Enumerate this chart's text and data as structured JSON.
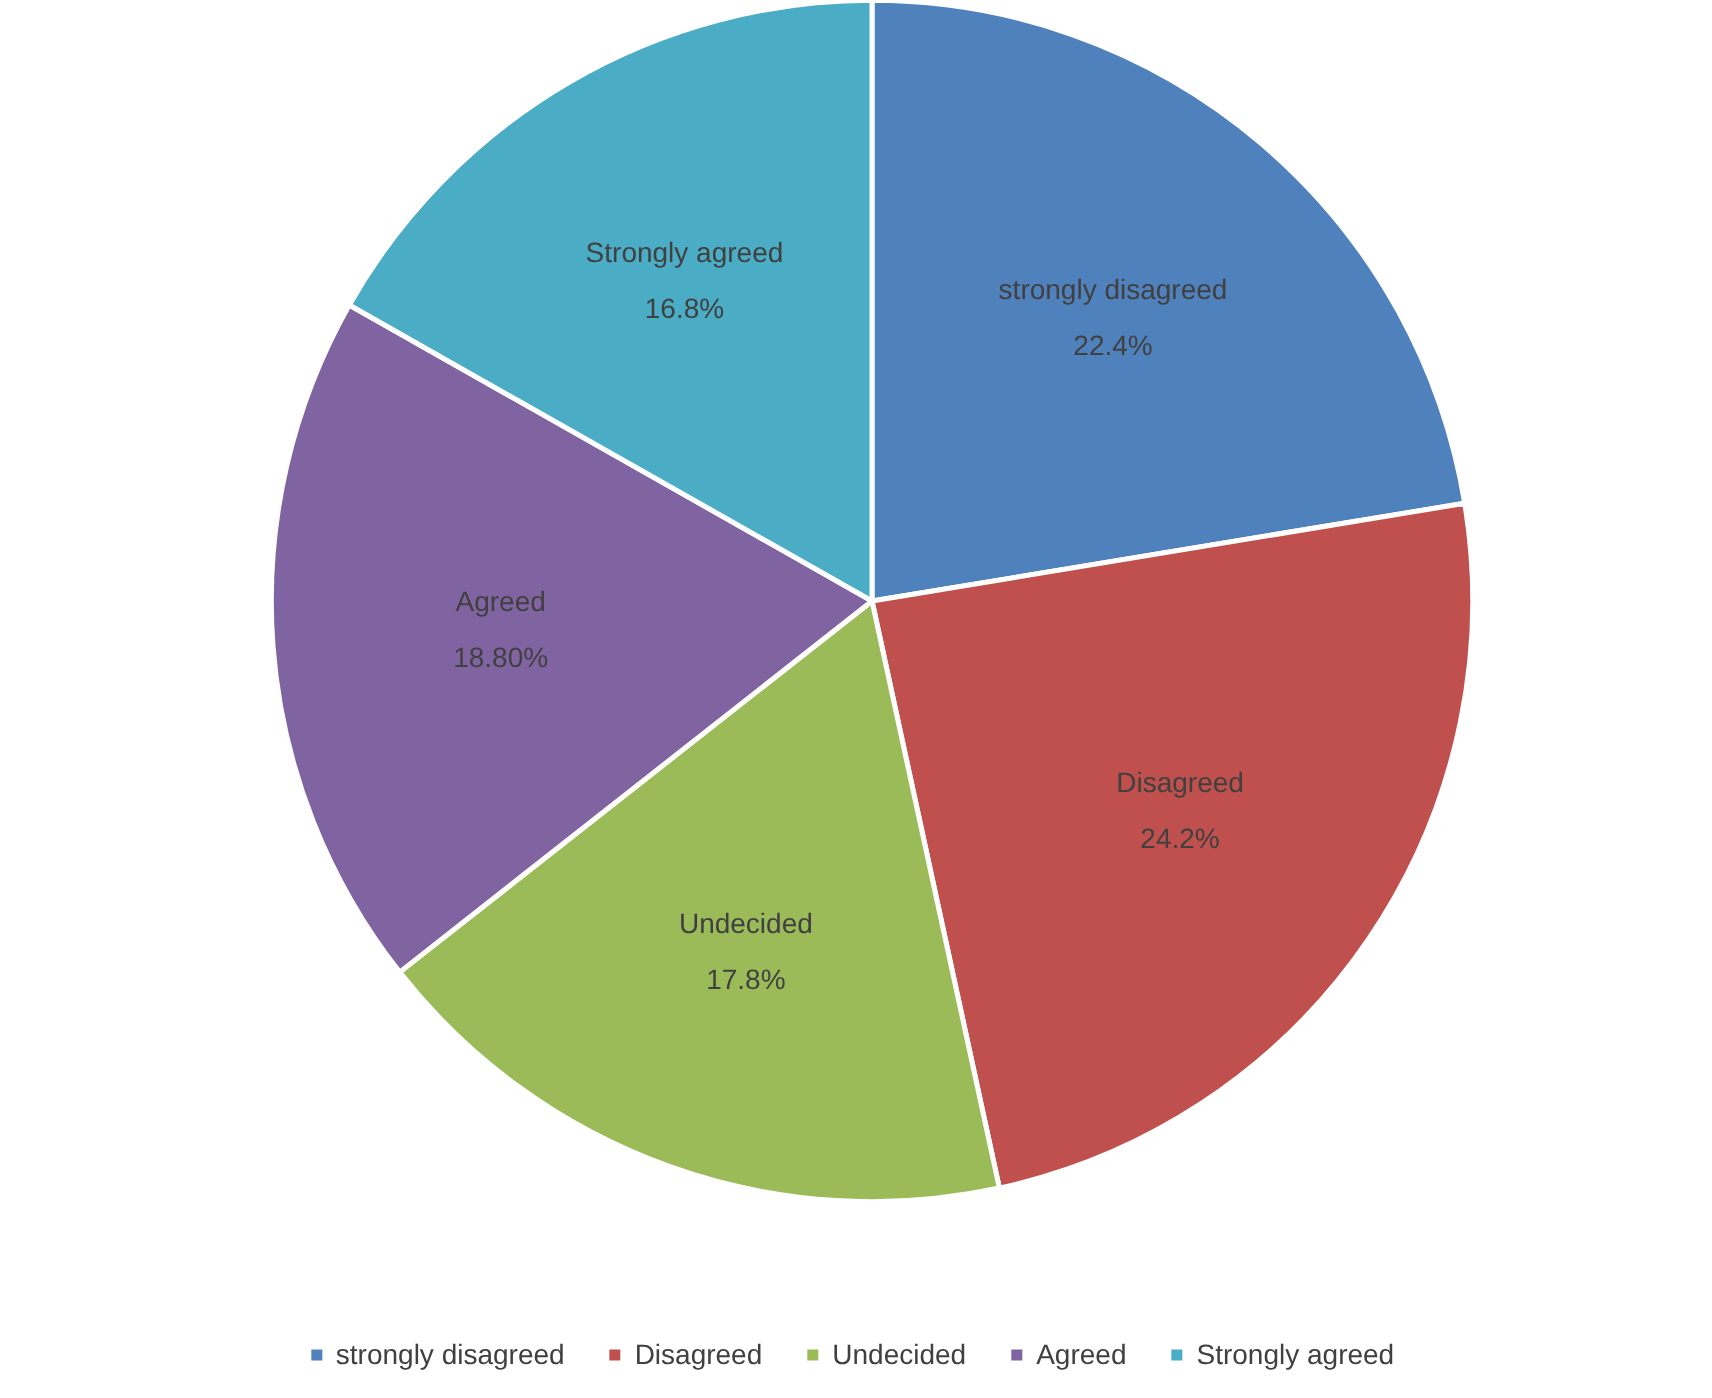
{
  "chart_data": {
    "type": "pie",
    "categories": [
      "strongly disagreed",
      "Disagreed",
      "Undecided",
      "Agreed",
      "Strongly agreed"
    ],
    "values": [
      22.4,
      24.2,
      17.8,
      18.8,
      16.8
    ],
    "colors": [
      "#4f81bd",
      "#c0504d",
      "#9bbb59",
      "#8064a2",
      "#4bacc6"
    ],
    "value_labels": [
      "22.4%",
      "24.2%",
      "17.8%",
      "18.80%",
      "16.8%"
    ],
    "legend": "bottom"
  }
}
